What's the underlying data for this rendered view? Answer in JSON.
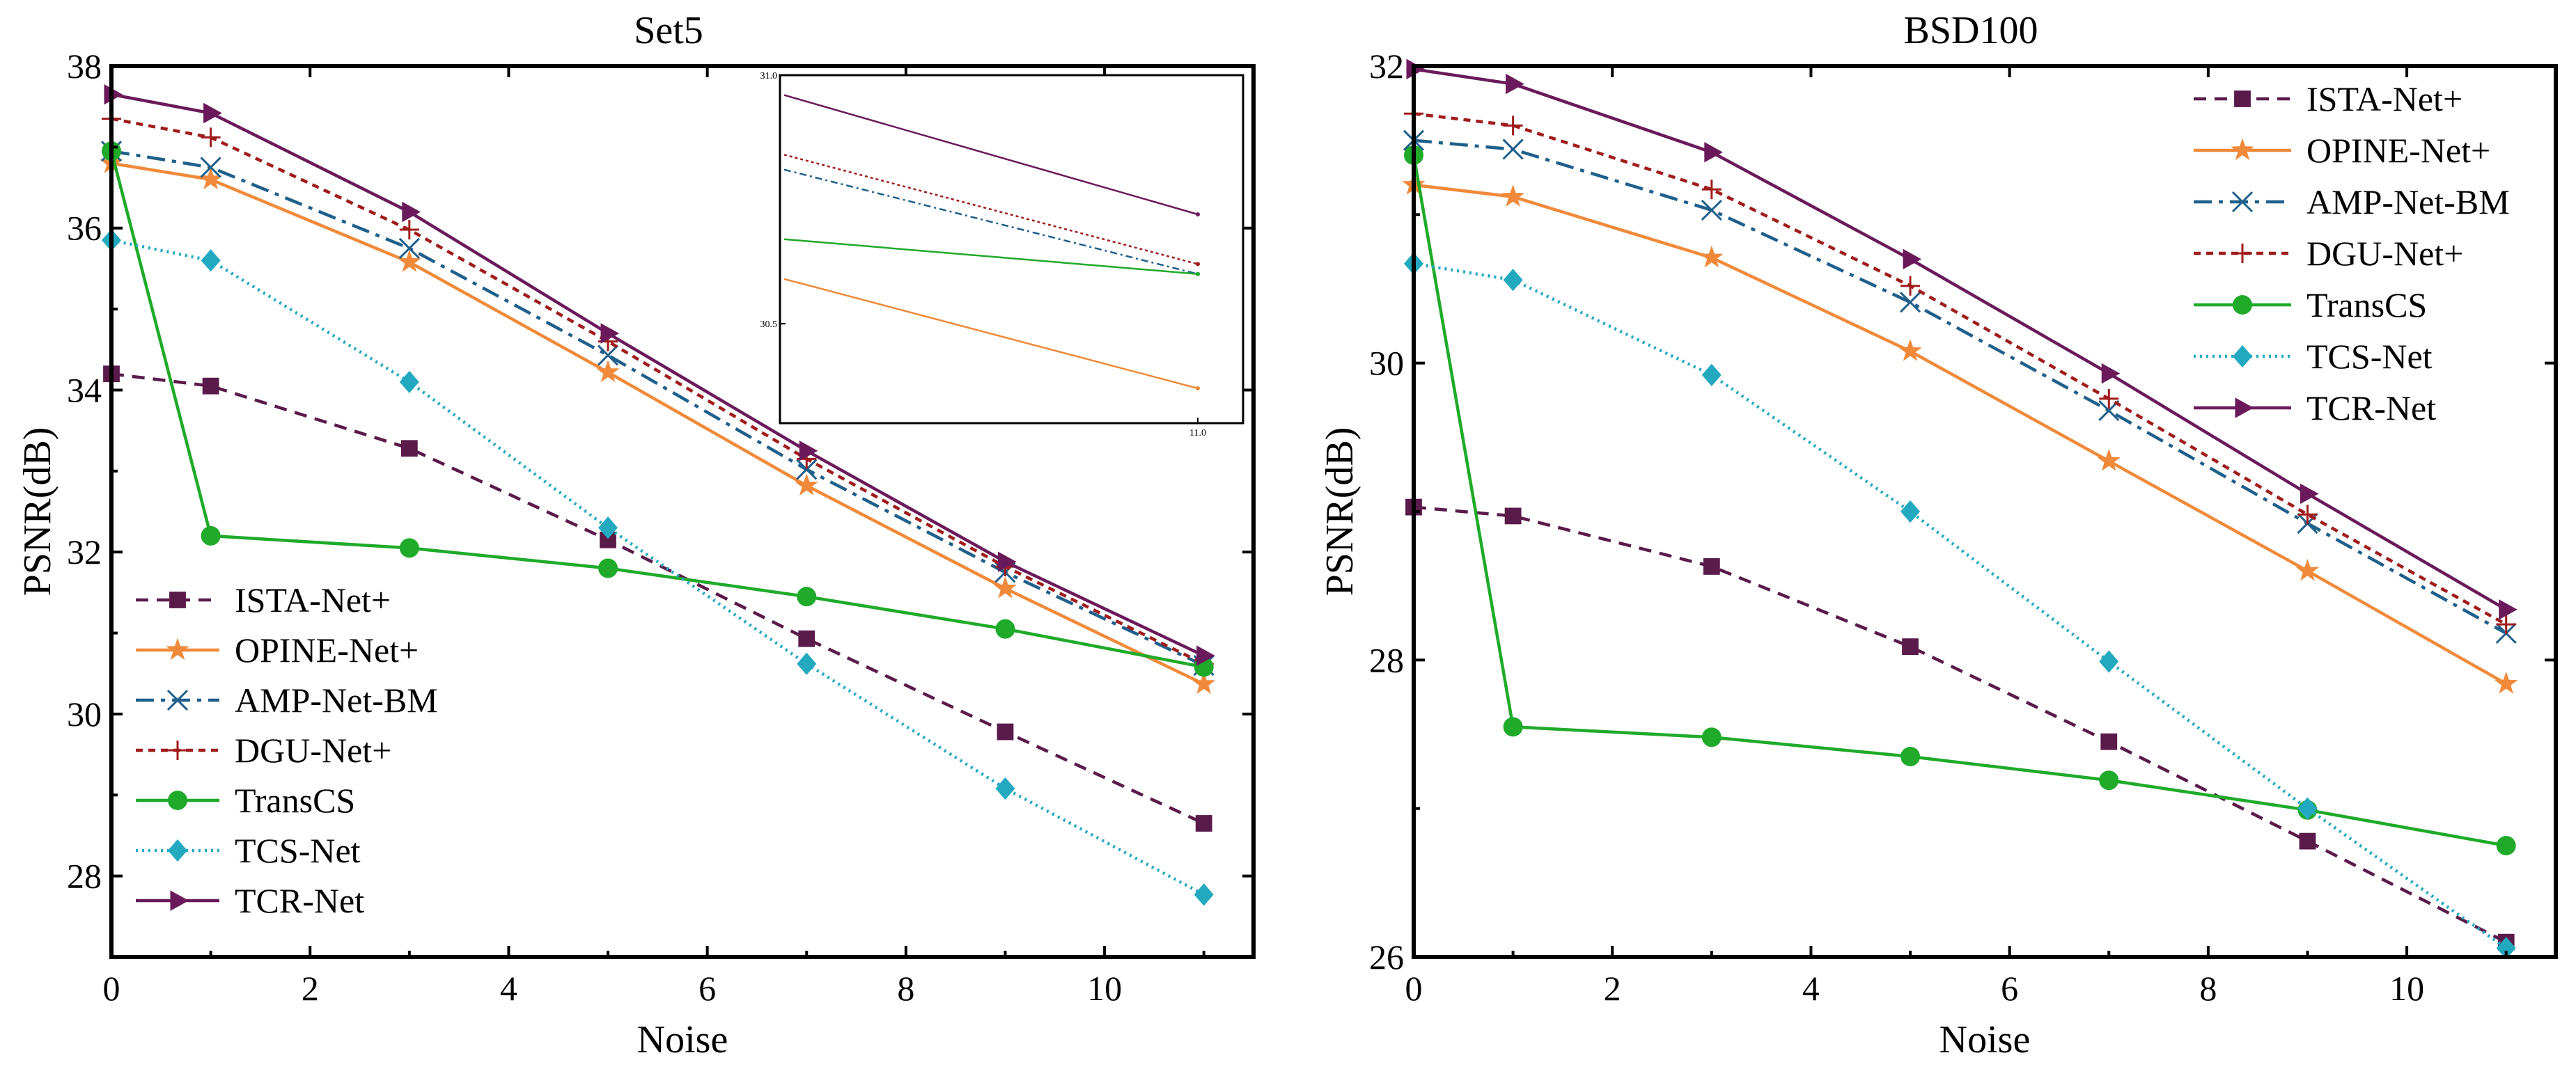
{
  "series_styles": [
    {
      "name": "ISTA-Net+",
      "color": "#5a1a4a",
      "dash": "18,12",
      "marker": "square",
      "markerColor": "#5a1a4a"
    },
    {
      "name": "OPINE-Net+",
      "color": "#f08a3a",
      "dash": "",
      "marker": "star",
      "markerColor": "#f08a3a"
    },
    {
      "name": "AMP-Net-BM",
      "color": "#1f5f8b",
      "dash": "26,10,6,10",
      "marker": "x",
      "markerColor": "#1f5f8b"
    },
    {
      "name": "DGU-Net+",
      "color": "#a01c1c",
      "dash": "10,8",
      "marker": "plus",
      "markerColor": "#a01c1c"
    },
    {
      "name": "TransCS",
      "color": "#1faa2a",
      "dash": "",
      "marker": "circle",
      "markerColor": "#1faa2a"
    },
    {
      "name": "TCS-Net",
      "color": "#22a9c0",
      "dash": "3,6",
      "marker": "diamond",
      "markerColor": "#22a9c0"
    },
    {
      "name": "TCR-Net",
      "color": "#6a1a5a",
      "dash": "",
      "marker": "triangle",
      "markerColor": "#6a1a5a"
    }
  ],
  "chart_data": [
    {
      "type": "line",
      "title": "Set5",
      "xlabel": "Noise",
      "ylabel": "PSNR(dB)",
      "xlim": [
        0,
        11.5
      ],
      "ylim": [
        27,
        38
      ],
      "xticks": [
        0,
        2,
        4,
        6,
        8,
        10
      ],
      "yticks": [
        28,
        30,
        32,
        34,
        36,
        38
      ],
      "x": [
        0,
        1,
        3,
        5,
        7,
        9,
        11
      ],
      "legend": "bottom-left",
      "series": [
        {
          "name": "ISTA-Net+",
          "values": [
            34.2,
            34.05,
            33.28,
            32.15,
            30.93,
            29.78,
            28.65
          ]
        },
        {
          "name": "OPINE-Net+",
          "values": [
            36.8,
            36.6,
            35.58,
            34.22,
            32.82,
            31.55,
            30.37
          ]
        },
        {
          "name": "AMP-Net-BM",
          "values": [
            36.95,
            36.75,
            35.75,
            34.43,
            33.02,
            31.75,
            30.6
          ]
        },
        {
          "name": "DGU-Net+",
          "values": [
            37.35,
            37.12,
            35.98,
            34.6,
            33.15,
            31.82,
            30.62
          ]
        },
        {
          "name": "TransCS",
          "values": [
            36.95,
            32.2,
            32.05,
            31.8,
            31.45,
            31.05,
            30.58
          ]
        },
        {
          "name": "TCS-Net",
          "values": [
            35.85,
            35.6,
            34.1,
            32.3,
            30.62,
            29.08,
            27.77
          ]
        },
        {
          "name": "TCR-Net",
          "values": [
            37.65,
            37.42,
            36.2,
            34.7,
            33.25,
            31.88,
            30.72
          ]
        }
      ],
      "inset": {
        "xlim": [
          10.999,
          11.0
        ],
        "ylim": [
          30.3,
          31.0
        ],
        "yticks": [
          {
            "value": 31.0,
            "label": "31.0"
          },
          {
            "value": 30.5,
            "label": "30.5"
          }
        ],
        "xticks": [
          {
            "value": 11.0,
            "label": "11.0"
          }
        ],
        "series": [
          {
            "name": "OPINE-Net+",
            "start": 30.59,
            "end": 30.37
          },
          {
            "name": "AMP-Net-BM",
            "start": 30.81,
            "end": 30.6
          },
          {
            "name": "DGU-Net+",
            "start": 30.84,
            "end": 30.62
          },
          {
            "name": "TransCS",
            "start": 30.67,
            "end": 30.6
          },
          {
            "name": "TCR-Net",
            "start": 30.96,
            "end": 30.72
          }
        ]
      }
    },
    {
      "type": "line",
      "title": "BSD100",
      "xlabel": "Noise",
      "ylabel": "PSNR(dB)",
      "xlim": [
        0,
        11.5
      ],
      "ylim": [
        26,
        32
      ],
      "xticks": [
        0,
        2,
        4,
        6,
        8,
        10
      ],
      "yticks": [
        26,
        28,
        30,
        32
      ],
      "x": [
        0,
        1,
        3,
        5,
        7,
        9,
        11
      ],
      "legend": "top-right",
      "series": [
        {
          "name": "ISTA-Net+",
          "values": [
            29.03,
            28.97,
            28.63,
            28.09,
            27.45,
            26.78,
            26.1
          ]
        },
        {
          "name": "OPINE-Net+",
          "values": [
            31.2,
            31.12,
            30.71,
            30.08,
            29.34,
            28.6,
            27.84
          ]
        },
        {
          "name": "AMP-Net-BM",
          "values": [
            31.5,
            31.44,
            31.03,
            30.41,
            29.68,
            28.92,
            28.18
          ]
        },
        {
          "name": "DGU-Net+",
          "values": [
            31.68,
            31.6,
            31.17,
            30.52,
            29.76,
            28.98,
            28.24
          ]
        },
        {
          "name": "TransCS",
          "values": [
            31.4,
            27.55,
            27.48,
            27.35,
            27.19,
            26.99,
            26.75
          ]
        },
        {
          "name": "TCS-Net",
          "values": [
            30.67,
            30.56,
            29.92,
            29.0,
            27.99,
            27.0,
            26.06
          ]
        },
        {
          "name": "TCR-Net",
          "values": [
            31.98,
            31.88,
            31.42,
            30.7,
            29.93,
            29.12,
            28.34
          ]
        }
      ]
    }
  ]
}
